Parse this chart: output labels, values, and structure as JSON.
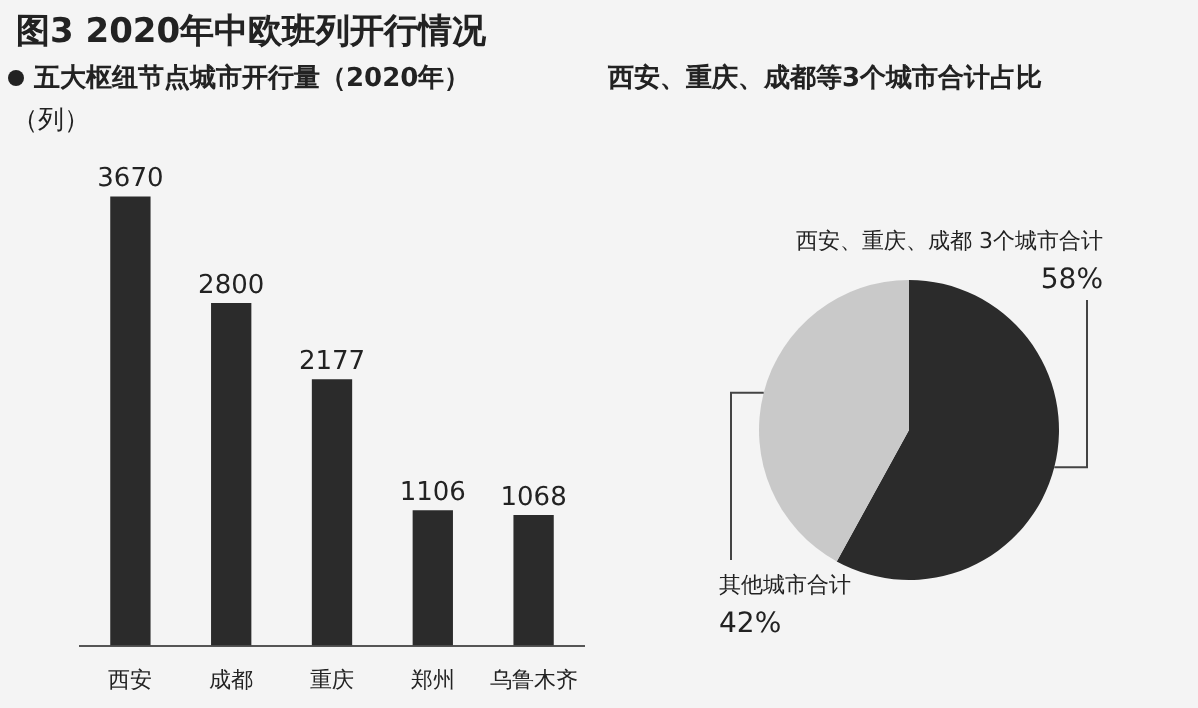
{
  "chart_data": [
    {
      "type": "bar",
      "title": "图3 2020年中欧班列开行情况",
      "subtitle": "五大枢纽节点城市开行量（2020年）",
      "ylabel": "（列）",
      "categories": [
        "西安",
        "成都",
        "重庆",
        "郑州",
        "乌鲁木齐"
      ],
      "values": [
        3670,
        2800,
        2177,
        1106,
        1068
      ],
      "color": "#2b2b2b",
      "data_labels": true,
      "legend": false
    },
    {
      "type": "pie",
      "title": "西安、重庆、成都等3个城市合计占比",
      "categories": [
        "西安、重庆、成都 3个城市合计",
        "其他城市合计"
      ],
      "values": [
        58,
        42
      ],
      "colors": [
        "#2b2b2b",
        "#c9c9c9"
      ],
      "value_labels": [
        "58%",
        "42%"
      ],
      "legend": false
    }
  ]
}
